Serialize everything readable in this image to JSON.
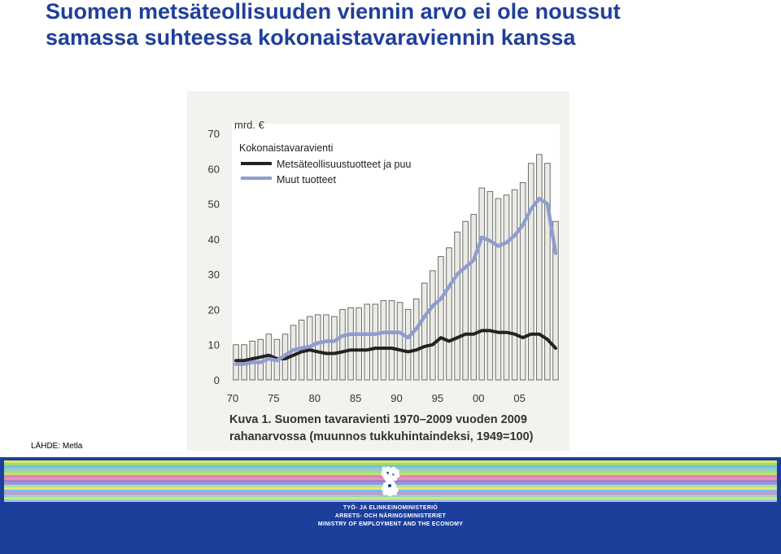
{
  "title": {
    "line1": "Suomen metsäteollisuuden viennin arvo ei ole noussut",
    "line2": "samassa suhteessa kokonaistavaraviennin kanssa"
  },
  "source": "LÄHDE: Metla",
  "chart_data": {
    "type": "bar",
    "ylabel": "mrd. €",
    "ylim": [
      0,
      70
    ],
    "yticks": [
      0,
      10,
      20,
      30,
      40,
      50,
      60,
      70
    ],
    "xticks": [
      {
        "year": 1970,
        "label": "70"
      },
      {
        "year": 1975,
        "label": "75"
      },
      {
        "year": 1980,
        "label": "80"
      },
      {
        "year": 1985,
        "label": "85"
      },
      {
        "year": 1990,
        "label": "90"
      },
      {
        "year": 1995,
        "label": "95"
      },
      {
        "year": 2000,
        "label": "00"
      },
      {
        "year": 2005,
        "label": "05"
      }
    ],
    "years": [
      1970,
      1971,
      1972,
      1973,
      1974,
      1975,
      1976,
      1977,
      1978,
      1979,
      1980,
      1981,
      1982,
      1983,
      1984,
      1985,
      1986,
      1987,
      1988,
      1989,
      1990,
      1991,
      1992,
      1993,
      1994,
      1995,
      1996,
      1997,
      1998,
      1999,
      2000,
      2001,
      2002,
      2003,
      2004,
      2005,
      2006,
      2007,
      2008,
      2009
    ],
    "series": [
      {
        "name": "Kokonaistavaravienti",
        "type": "bar",
        "values": [
          10,
          10,
          11,
          11.5,
          13,
          11.5,
          13,
          15.5,
          17,
          18,
          18.5,
          18.5,
          18,
          20,
          20.5,
          20.5,
          21.5,
          21.5,
          22.5,
          22.5,
          22,
          20,
          23,
          27.5,
          31,
          35,
          37.5,
          42,
          45,
          47,
          54.5,
          53.5,
          51.5,
          52.5,
          54,
          56,
          61.5,
          64,
          61.5,
          45
        ]
      },
      {
        "name": "Metsäteollisuustuotteet ja puu",
        "type": "line",
        "color": "#222222",
        "values": [
          5.5,
          5.5,
          6,
          6.5,
          7,
          6,
          6,
          7,
          8,
          8.5,
          8,
          7.5,
          7.5,
          8,
          8.5,
          8.5,
          8.5,
          9,
          9,
          9,
          8.5,
          8,
          8.5,
          9.5,
          10,
          12,
          11,
          12,
          13,
          13,
          14,
          14,
          13.5,
          13.5,
          13,
          12,
          13,
          13,
          11.5,
          9
        ]
      },
      {
        "name": "Muut tuotteet",
        "type": "line",
        "color": "#8f9dd0",
        "values": [
          4.5,
          4.5,
          5,
          5,
          6,
          5.5,
          7,
          8.5,
          9,
          9.5,
          10.5,
          11,
          11,
          12.5,
          13,
          13,
          13,
          13,
          13.5,
          13.5,
          13.5,
          12,
          14.5,
          18,
          21,
          23,
          26.5,
          30,
          32,
          34,
          40.5,
          39.5,
          38,
          39,
          41,
          44,
          48.5,
          51.5,
          50,
          36
        ]
      }
    ],
    "caption": {
      "line1": "Kuva 1. Suomen tavaravienti 1970–2009 vuoden 2009",
      "line2": "rahanarvossa (muunnos tukkuhintaindeksi, 1949=100)"
    },
    "legend_position": "top-left"
  },
  "footer": {
    "ministry_fi": "TYÖ- JA ELINKEINOMINISTERIÖ",
    "ministry_sv": "ARBETS- OCH NÄRINGSMINISTERIET",
    "ministry_en": "MINISTRY OF EMPLOYMENT AND THE ECONOMY",
    "stripe_colors": [
      "#d7e56a",
      "#a8d46b",
      "#6fc3d9",
      "#8fcbe0",
      "#9ed5a0",
      "#c6e06b",
      "#d988b6",
      "#e88fc0",
      "#a97fc8",
      "#8a9ee0",
      "#b5dfa0",
      "#e3e970",
      "#7dbbe8",
      "#c894d6",
      "#91d4c1",
      "#d8e57a",
      "#9fc3ec"
    ],
    "logo": "lion-crest-icon"
  }
}
